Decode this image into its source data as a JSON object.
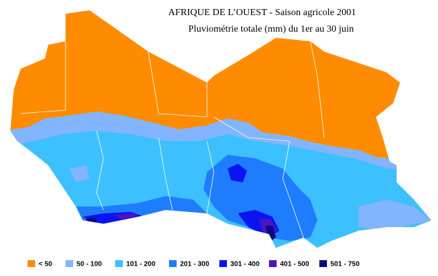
{
  "title": "AFRIQUE DE L’OUEST - Saison agricole 2001",
  "subtitle": "Pluviométrie totale (mm) du 1er au 30 juin",
  "legend": [
    {
      "label": "< 50",
      "color": "#ff8c00"
    },
    {
      "label": "50 - 100",
      "color": "#82b4ff"
    },
    {
      "label": "101 - 200",
      "color": "#3cc0ff"
    },
    {
      "label": "201 - 300",
      "color": "#1e7dff"
    },
    {
      "label": "301 - 400",
      "color": "#0a14f0"
    },
    {
      "label": "401 - 500",
      "color": "#4b14c8"
    },
    {
      "label": "501 - 750",
      "color": "#0a0a82"
    }
  ]
}
